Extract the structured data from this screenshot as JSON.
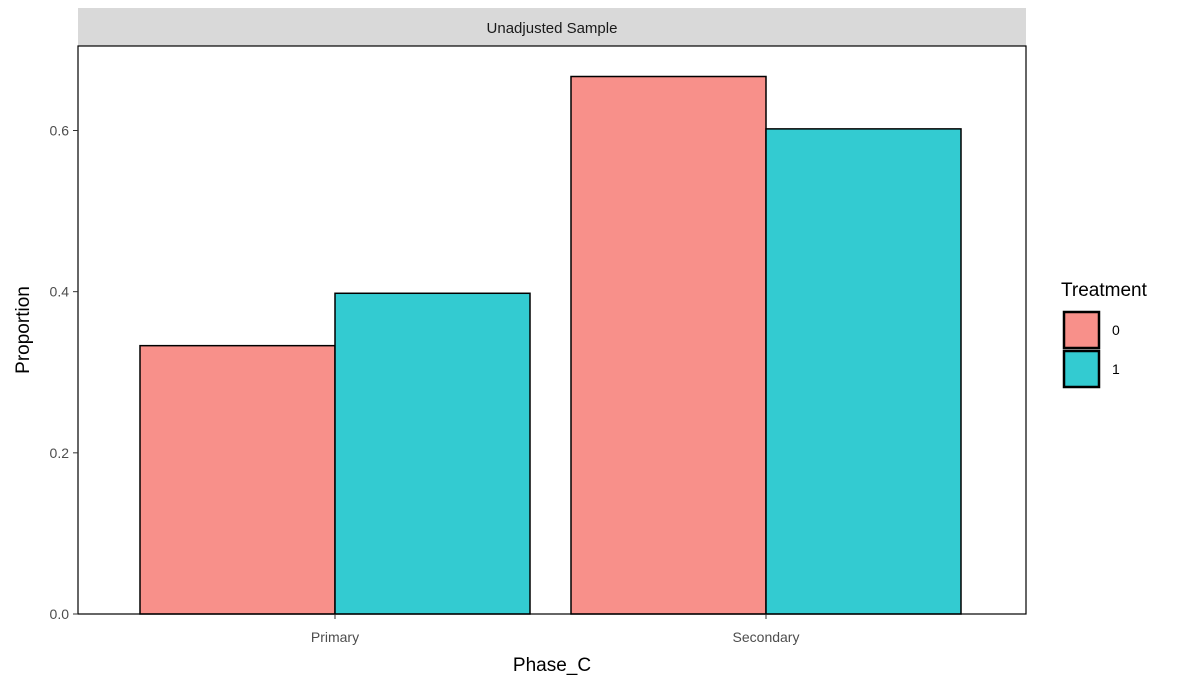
{
  "chart_data": {
    "type": "bar",
    "facet_title": "Unadjusted Sample",
    "xlabel": "Phase_C",
    "ylabel": "Proportion",
    "categories": [
      "Primary",
      "Secondary"
    ],
    "series": [
      {
        "name": "0",
        "values": [
          0.333,
          0.667
        ],
        "color": "#F8908A"
      },
      {
        "name": "1",
        "values": [
          0.398,
          0.602
        ],
        "color": "#33CBD1"
      }
    ],
    "ylim": [
      0,
      0.7
    ],
    "yticks": [
      0.0,
      0.2,
      0.4,
      0.6
    ],
    "ytick_labels": [
      "0.0",
      "0.2",
      "0.4",
      "0.6"
    ],
    "grid": false,
    "legend": {
      "title": "Treatment",
      "position": "right"
    }
  }
}
